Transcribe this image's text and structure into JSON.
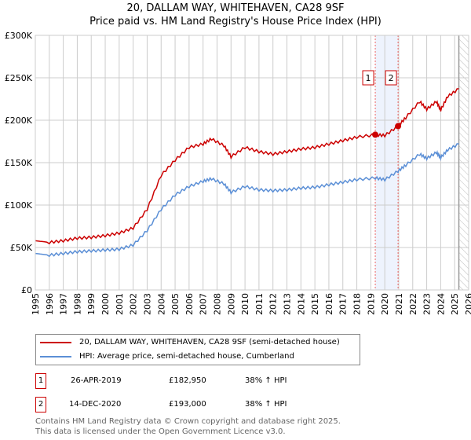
{
  "title": "20, DALLAM WAY, WHITEHAVEN, CA28 9SF",
  "subtitle": "Price paid vs. HM Land Registry's House Price Index (HPI)",
  "chart_data": {
    "type": "line",
    "title": "20, DALLAM WAY, WHITEHAVEN, CA28 9SF — Price paid vs. HM Land Registry's House Price Index (HPI)",
    "xlim": [
      1995,
      2026
    ],
    "ylim": [
      0,
      300000
    ],
    "x_ticks": [
      "1995",
      "1996",
      "1997",
      "1998",
      "1999",
      "2000",
      "2001",
      "2002",
      "2003",
      "2004",
      "2005",
      "2006",
      "2007",
      "2008",
      "2009",
      "2010",
      "2011",
      "2012",
      "2013",
      "2014",
      "2015",
      "2016",
      "2017",
      "2018",
      "2019",
      "2020",
      "2021",
      "2022",
      "2023",
      "2024",
      "2025",
      "2026"
    ],
    "y_ticks": [
      {
        "v": 0,
        "label": "£0"
      },
      {
        "v": 50000,
        "label": "£50K"
      },
      {
        "v": 100000,
        "label": "£100K"
      },
      {
        "v": 150000,
        "label": "£150K"
      },
      {
        "v": 200000,
        "label": "£200K"
      },
      {
        "v": 250000,
        "label": "£250K"
      },
      {
        "v": 300000,
        "label": "£300K"
      }
    ],
    "grid": true,
    "series": [
      {
        "name": "20, DALLAM WAY, WHITEHAVEN, CA28 9SF (semi-detached house)",
        "color": "#cc0000",
        "x": [
          1995,
          1996,
          1997,
          1998,
          1999,
          2000,
          2001,
          2002,
          2003,
          2004,
          2005,
          2006,
          2007,
          2007.6,
          2008.5,
          2009,
          2010,
          2011,
          2012,
          2013,
          2014,
          2015,
          2016,
          2017,
          2018,
          2019.32,
          2020,
          2020.95,
          2021.5,
          2022.5,
          2023,
          2023.7,
          2024,
          2024.5,
          2025.3
        ],
        "y": [
          58000,
          56000,
          58000,
          61000,
          62000,
          64000,
          67000,
          73000,
          95000,
          135000,
          153000,
          168000,
          172000,
          178000,
          170000,
          157000,
          168000,
          163000,
          160000,
          163000,
          166000,
          168000,
          172000,
          176000,
          180000,
          182950,
          182000,
          193000,
          203000,
          222000,
          213000,
          222000,
          212000,
          228000,
          237000
        ]
      },
      {
        "name": "HPI: Average price, semi-detached house, Cumberland",
        "color": "#5b8fd6",
        "x": [
          1995,
          1996,
          1997,
          1998,
          1999,
          2000,
          2001,
          2002,
          2003,
          2004,
          2005,
          2006,
          2007,
          2007.6,
          2008.5,
          2009,
          2010,
          2011,
          2012,
          2013,
          2014,
          2015,
          2016,
          2017,
          2018,
          2019.32,
          2020,
          2020.95,
          2021.5,
          2022.5,
          2023,
          2023.7,
          2024,
          2024.5,
          2025.3
        ],
        "y": [
          43000,
          41000,
          43000,
          45000,
          46000,
          47000,
          48000,
          53000,
          70000,
          95000,
          112000,
          122000,
          128000,
          131000,
          125000,
          115000,
          122000,
          118000,
          117000,
          118000,
          120000,
          121000,
          124000,
          127000,
          130000,
          132000,
          130000,
          140000,
          147000,
          160000,
          155000,
          162000,
          156000,
          165000,
          172000
        ]
      }
    ],
    "sales": [
      {
        "label": "1",
        "x": 2019.32,
        "y": 182950
      },
      {
        "label": "2",
        "x": 2020.95,
        "y": 193000
      }
    ],
    "hatched_from": 2025.3
  },
  "legend": [
    {
      "label": "20, DALLAM WAY, WHITEHAVEN, CA28 9SF (semi-detached house)",
      "color": "#cc0000"
    },
    {
      "label": "HPI: Average price, semi-detached house, Cumberland",
      "color": "#5b8fd6"
    }
  ],
  "table": [
    {
      "n": "1",
      "date": "26-APR-2019",
      "price": "£182,950",
      "hpi": "38% ↑ HPI"
    },
    {
      "n": "2",
      "date": "14-DEC-2020",
      "price": "£193,000",
      "hpi": "38% ↑ HPI"
    }
  ],
  "footer": [
    "Contains HM Land Registry data © Crown copyright and database right 2025.",
    "This data is licensed under the Open Government Licence v3.0."
  ]
}
